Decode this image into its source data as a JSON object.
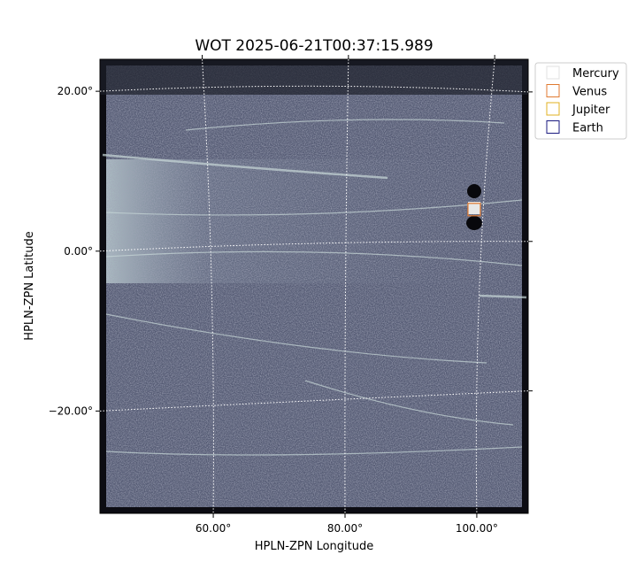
{
  "chart_data": {
    "type": "image",
    "title": "WOT 2025-06-21T00:37:15.989",
    "xlabel": "HPLN-ZPN Longitude",
    "ylabel": "HPLN-ZPN Latitude",
    "xlim": [
      42.8,
      107.8
    ],
    "ylim": [
      -32.8,
      24.0
    ],
    "xticks": [
      {
        "value": 60,
        "label": "60.00°"
      },
      {
        "value": 80,
        "label": "80.00°"
      },
      {
        "value": 100,
        "label": "100.00°"
      }
    ],
    "yticks": [
      {
        "value": -20,
        "label": "−20.00°"
      },
      {
        "value": 0,
        "label": "0.00°"
      },
      {
        "value": 20,
        "label": "20.00°"
      }
    ],
    "grid": true,
    "legend": "upper right",
    "series": [
      {
        "name": "Mercury",
        "color": "#e0e0e0",
        "x": [],
        "y": []
      },
      {
        "name": "Venus",
        "color": "#e07a30",
        "x": [
          99.6
        ],
        "y": [
          5.2
        ]
      },
      {
        "name": "Jupiter",
        "color": "#e0b020",
        "x": [],
        "y": []
      },
      {
        "name": "Earth",
        "color": "#1a1a80",
        "x": [],
        "y": []
      }
    ]
  }
}
